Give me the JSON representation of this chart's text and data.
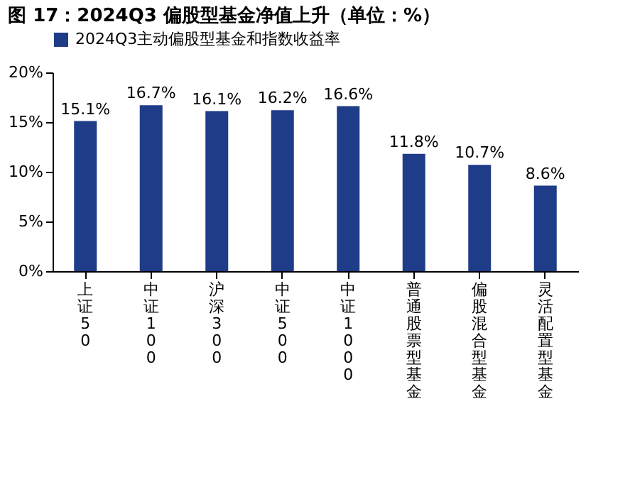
{
  "chart_data": {
    "type": "bar",
    "title": "图 17：2024Q3 偏股型基金净值上升（单位：%）",
    "categories": [
      "上证50",
      "中证100",
      "沪深300",
      "中证500",
      "中证1000",
      "普通股票型基金",
      "偏股混合型基金",
      "灵活配置型基金"
    ],
    "series": [
      {
        "name": "2024Q3主动偏股型基金和指数收益率",
        "color": "#1f3c88",
        "values": [
          15.1,
          16.7,
          16.1,
          16.2,
          16.6,
          11.8,
          10.7,
          8.6
        ]
      }
    ],
    "value_labels": [
      "15.1%",
      "16.7%",
      "16.1%",
      "16.2%",
      "16.6%",
      "11.8%",
      "10.7%",
      "8.6%"
    ],
    "ylim": [
      0,
      20
    ],
    "yticks": [
      {
        "value": 0,
        "label": "0%"
      },
      {
        "value": 5,
        "label": "5%"
      },
      {
        "value": 10,
        "label": "10%"
      },
      {
        "value": 15,
        "label": "15%"
      },
      {
        "value": 20,
        "label": "20%"
      }
    ],
    "grid": false,
    "legend": "top"
  }
}
